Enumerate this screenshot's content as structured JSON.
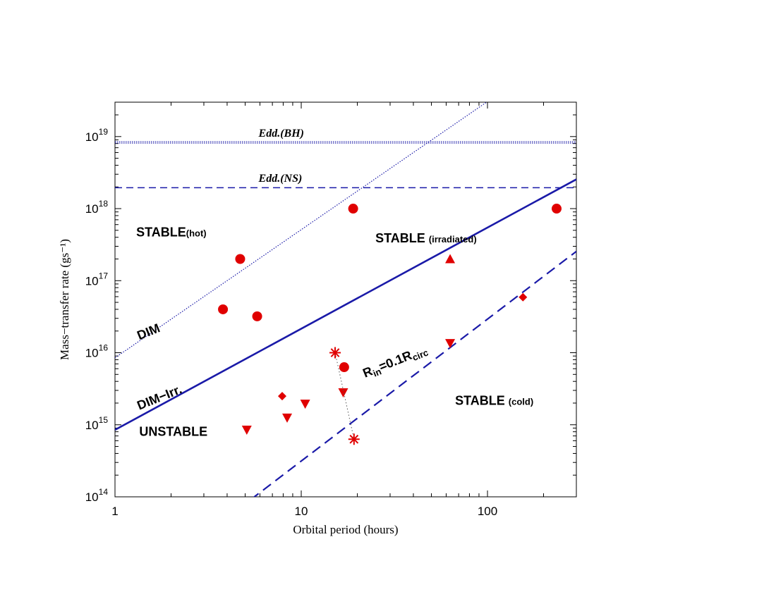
{
  "chart_data": {
    "type": "scatter",
    "xlabel": "Orbital period (hours)",
    "ylabel": "Mass−transfer rate (gs⁻¹)",
    "x_scale": "log",
    "y_scale": "log",
    "xlim": [
      1,
      300
    ],
    "ylim": [
      100000000000000.0,
      3e+19
    ],
    "x_ticks": [
      {
        "value": 1,
        "label": "1"
      },
      {
        "value": 10,
        "label": "10"
      },
      {
        "value": 100,
        "label": "100"
      }
    ],
    "y_ticks": [
      {
        "value": 100000000000000.0,
        "exp": "14"
      },
      {
        "value": 1000000000000000.0,
        "exp": "15"
      },
      {
        "value": 1e+16,
        "exp": "16"
      },
      {
        "value": 1e+17,
        "exp": "17"
      },
      {
        "value": 1e+18,
        "exp": "18"
      },
      {
        "value": 1e+19,
        "exp": "19"
      }
    ],
    "lines": [
      {
        "name": "Edd.(BH)",
        "kind": "horizontal",
        "y": 8.3e+18,
        "style": "dotted-double",
        "color": "#1a1aa8"
      },
      {
        "name": "Edd.(NS)",
        "kind": "horizontal",
        "y": 1.95e+18,
        "style": "dashed",
        "color": "#1a1aa8"
      },
      {
        "name": "DIM",
        "kind": "powerlaw",
        "points": [
          [
            1,
            8500000000000000.0
          ],
          [
            48,
            8.3e+18
          ]
        ],
        "style": "dotted",
        "color": "#1a1aa8"
      },
      {
        "name": "DIM−Irr.",
        "kind": "powerlaw",
        "points": [
          [
            1,
            850000000000000.0
          ],
          [
            300,
            2.55e+18
          ]
        ],
        "style": "solid",
        "color": "#1a1aa8"
      },
      {
        "name": "R_in=0.1R_circ",
        "kind": "powerlaw",
        "points": [
          [
            5.6,
            100000000000000.0
          ],
          [
            300,
            2.55e+17
          ]
        ],
        "style": "dashed",
        "color": "#1a1aa8"
      }
    ],
    "series": [
      {
        "marker": "circle",
        "color": "#e00000",
        "points": [
          [
            4.7,
            2e+17
          ],
          [
            3.8,
            4e+16
          ],
          [
            5.8,
            3.2e+16
          ],
          [
            19,
            1e+18
          ],
          [
            17,
            6300000000000000.0
          ],
          [
            235,
            1e+18
          ]
        ]
      },
      {
        "marker": "triangle-up",
        "color": "#e00000",
        "points": [
          [
            63,
            2e+17
          ]
        ]
      },
      {
        "marker": "triangle-down",
        "color": "#e00000",
        "points": [
          [
            5.1,
            850000000000000.0
          ],
          [
            8.4,
            1250000000000000.0
          ],
          [
            10.5,
            1950000000000000.0
          ],
          [
            16.8,
            2800000000000000.0
          ],
          [
            63,
            1.35e+16
          ]
        ]
      },
      {
        "marker": "diamond",
        "color": "#e00000",
        "points": [
          [
            7.9,
            2500000000000000.0
          ],
          [
            155,
            5.9e+16
          ]
        ]
      },
      {
        "marker": "star",
        "color": "#e00000",
        "points": [
          [
            15.2,
            1e+16
          ],
          [
            19.2,
            630000000000000.0
          ]
        ],
        "connector": "dotted"
      }
    ],
    "annotations": [
      {
        "text": "STABLE",
        "sub": "(hot)",
        "x": 1.3,
        "y": 4.1e+17
      },
      {
        "text": "STABLE ",
        "sub": "(irradiated)",
        "x": 25,
        "y": 3.4e+17
      },
      {
        "text": "STABLE ",
        "sub": "(cold)",
        "x": 67,
        "y": 1900000000000000.0
      },
      {
        "text": "UNSTABLE",
        "sub": "",
        "x": 1.35,
        "y": 700000000000000.0
      },
      {
        "text": "DIM",
        "sub": "",
        "x": 1.35,
        "y": 1.5e+16,
        "rotate": -22
      },
      {
        "text": "DIM−Irr.",
        "sub": "",
        "x": 1.35,
        "y": 1600000000000000.0,
        "rotate": -22
      },
      {
        "text": "R",
        "sub": "in",
        "tail": "=0.1R",
        "sub2": "circ",
        "x": 22,
        "y": 4500000000000000.0,
        "rotate": -22
      },
      {
        "text": "Edd.(BH)",
        "x": 5.9,
        "y": 1e+19,
        "style": "edd"
      },
      {
        "text": "Edd.(NS)",
        "x": 5.9,
        "y": 2.35e+18,
        "style": "edd"
      }
    ]
  }
}
